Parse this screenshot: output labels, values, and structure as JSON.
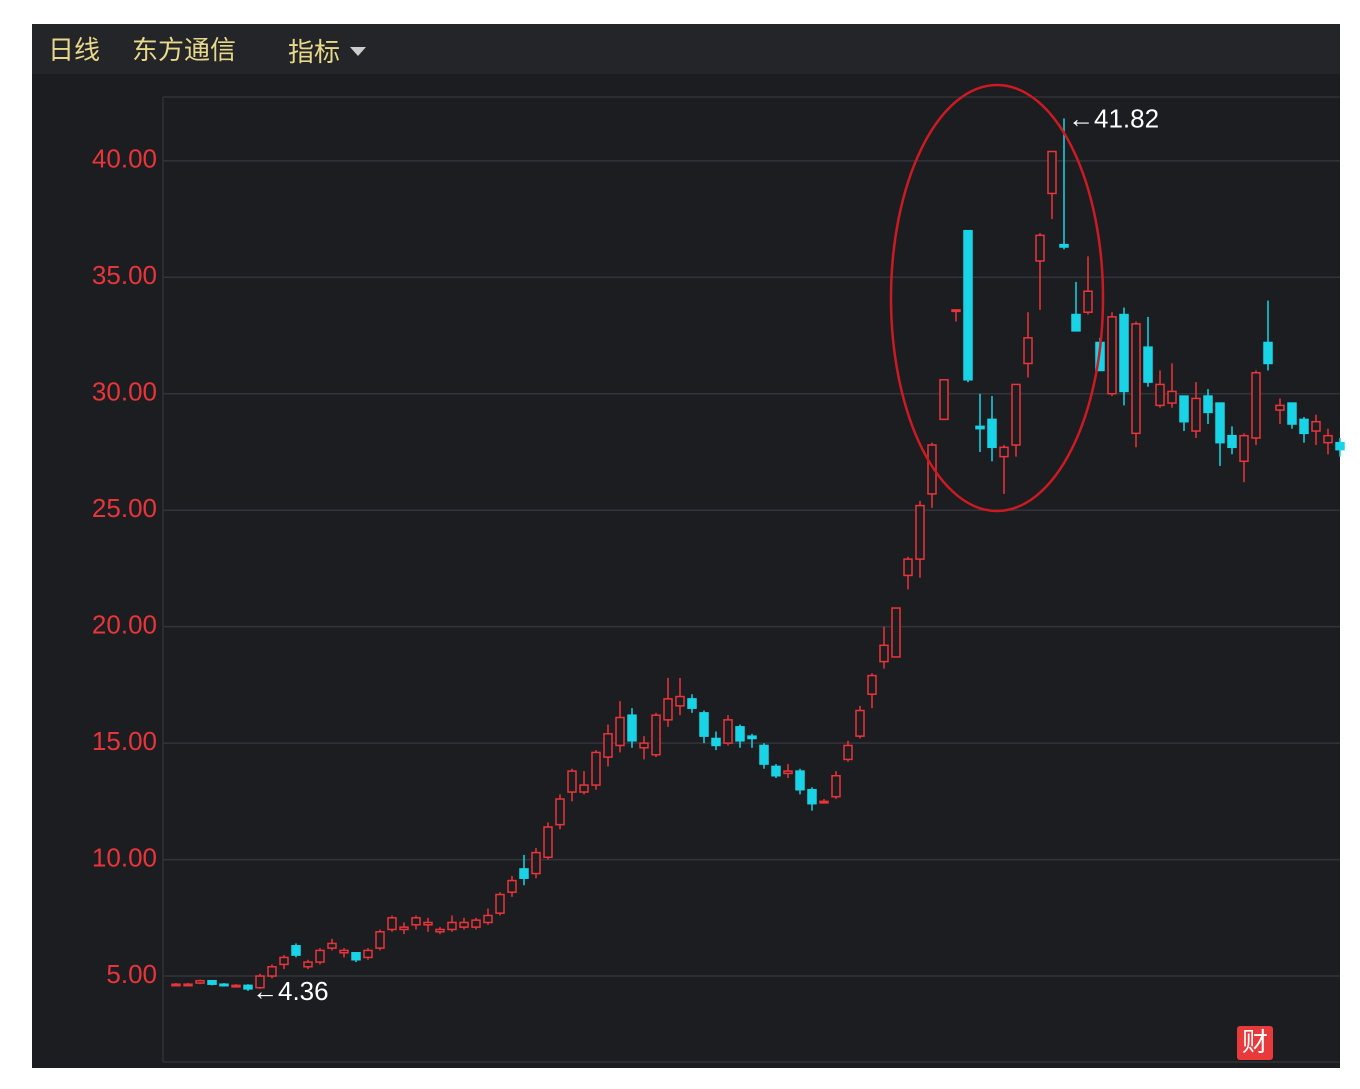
{
  "header": {
    "period": "日线",
    "stock": "东方通信",
    "indicator": "指标"
  },
  "badge": "财",
  "chart_data": {
    "type": "candlestick",
    "up_color": "#e8353a",
    "down_color": "#19d3e6",
    "tick_color": "#e8353a",
    "grid": true,
    "ylim": [
      1.31,
      42.74
    ],
    "yticks": [
      {
        "value": 5,
        "label": "5.00"
      },
      {
        "value": 10,
        "label": "10.00"
      },
      {
        "value": 15,
        "label": "15.00"
      },
      {
        "value": 20,
        "label": "20.00"
      },
      {
        "value": 25,
        "label": "25.00"
      },
      {
        "value": 30,
        "label": "30.00"
      },
      {
        "value": 35,
        "label": "35.00"
      },
      {
        "value": 40,
        "label": "40.00"
      }
    ],
    "open": [
      4.65,
      4.65,
      4.7,
      4.8,
      4.65,
      4.6,
      4.6,
      4.5,
      5.0,
      5.5,
      6.3,
      5.4,
      5.6,
      6.2,
      6.0,
      6.0,
      5.8,
      6.2,
      7.0,
      7.0,
      7.2,
      7.2,
      6.9,
      7.0,
      7.1,
      7.1,
      7.3,
      7.7,
      8.6,
      9.6,
      9.4,
      10.1,
      11.5,
      12.9,
      12.9,
      13.2,
      14.4,
      14.9,
      16.2,
      14.8,
      14.5,
      16.0,
      16.6,
      16.9,
      16.3,
      15.2,
      15.0,
      15.7,
      15.3,
      14.9,
      14.0,
      13.7,
      13.8,
      13.0,
      12.5,
      12.7,
      14.3,
      15.3,
      17.1,
      18.5,
      18.7,
      22.2,
      22.9,
      25.7,
      28.9,
      33.6,
      37.0,
      28.6,
      28.9,
      27.3,
      27.8,
      31.3,
      35.7,
      38.6,
      36.4,
      33.4,
      33.5,
      32.2,
      30.0,
      33.4,
      28.3,
      32.0,
      29.5,
      29.6,
      29.9,
      28.4,
      29.9,
      29.6,
      28.2,
      27.1,
      28.1,
      32.2,
      29.3,
      29.6,
      28.9,
      28.4,
      27.9,
      27.9
    ],
    "high": [
      4.7,
      4.7,
      4.85,
      4.8,
      4.7,
      4.65,
      4.65,
      5.1,
      5.5,
      5.9,
      6.4,
      5.7,
      6.2,
      6.6,
      6.2,
      6.0,
      6.2,
      7.0,
      7.6,
      7.3,
      7.6,
      7.5,
      7.1,
      7.6,
      7.5,
      7.5,
      7.9,
      8.6,
      9.3,
      10.2,
      10.5,
      11.6,
      12.8,
      13.9,
      13.8,
      14.7,
      15.8,
      16.8,
      16.5,
      15.3,
      16.3,
      17.8,
      17.8,
      17.1,
      16.4,
      15.5,
      16.2,
      15.8,
      15.4,
      15.0,
      14.1,
      14.1,
      13.9,
      13.1,
      12.6,
      13.8,
      15.1,
      16.6,
      18.0,
      20.0,
      20.8,
      23.0,
      25.4,
      27.9,
      30.6,
      33.6,
      37.0,
      30.0,
      29.9,
      27.8,
      30.4,
      33.5,
      36.9,
      40.4,
      41.82,
      34.8,
      35.9,
      32.4,
      33.5,
      33.7,
      33.1,
      33.3,
      31.0,
      31.3,
      29.9,
      30.5,
      30.2,
      29.6,
      28.6,
      28.3,
      31.0,
      34.0,
      29.8,
      29.6,
      29.0,
      29.1,
      28.5,
      28.1
    ],
    "low": [
      4.6,
      4.6,
      4.65,
      4.6,
      4.55,
      4.55,
      4.36,
      4.45,
      4.9,
      5.3,
      5.8,
      5.3,
      5.5,
      6.1,
      5.8,
      5.6,
      5.7,
      6.1,
      6.9,
      6.8,
      7.0,
      6.9,
      6.8,
      6.9,
      7.0,
      7.0,
      7.2,
      7.6,
      8.4,
      8.9,
      9.2,
      10.0,
      11.3,
      12.5,
      12.8,
      13.0,
      14.0,
      14.6,
      14.8,
      14.3,
      14.4,
      15.7,
      16.2,
      16.3,
      15.0,
      14.7,
      14.9,
      14.8,
      14.8,
      13.9,
      13.5,
      13.5,
      12.8,
      12.1,
      12.4,
      12.6,
      14.2,
      15.2,
      16.5,
      18.2,
      18.7,
      21.6,
      22.1,
      25.1,
      28.9,
      33.1,
      30.5,
      27.5,
      27.1,
      25.7,
      27.3,
      30.7,
      33.6,
      37.5,
      36.2,
      32.7,
      33.4,
      31.0,
      29.9,
      29.5,
      27.7,
      30.3,
      29.4,
      29.4,
      28.4,
      28.1,
      28.7,
      26.9,
      27.4,
      26.2,
      27.8,
      31.0,
      28.7,
      28.5,
      27.9,
      27.8,
      27.4,
      27.3
    ],
    "close": [
      4.65,
      4.65,
      4.8,
      4.65,
      4.6,
      4.6,
      4.45,
      5.0,
      5.4,
      5.8,
      5.9,
      5.6,
      6.1,
      6.4,
      6.1,
      5.7,
      6.1,
      6.9,
      7.5,
      7.1,
      7.5,
      7.3,
      7.0,
      7.3,
      7.3,
      7.4,
      7.6,
      8.5,
      9.1,
      9.2,
      10.3,
      11.4,
      12.6,
      13.8,
      13.2,
      14.6,
      15.4,
      16.1,
      15.1,
      15.0,
      16.2,
      16.9,
      17.0,
      16.5,
      15.3,
      14.9,
      16.0,
      15.1,
      15.2,
      14.1,
      13.6,
      13.8,
      13.0,
      12.4,
      12.5,
      13.6,
      14.9,
      16.4,
      17.9,
      19.2,
      20.8,
      22.9,
      25.2,
      27.8,
      30.6,
      33.6,
      30.6,
      28.5,
      27.7,
      27.7,
      30.4,
      32.4,
      36.8,
      40.4,
      36.3,
      32.7,
      34.4,
      31.0,
      33.3,
      30.1,
      33.0,
      30.5,
      30.4,
      30.1,
      28.8,
      29.8,
      29.2,
      27.9,
      27.7,
      28.2,
      30.9,
      31.3,
      29.5,
      28.7,
      28.3,
      28.8,
      28.2,
      27.6
    ],
    "annotations": [
      {
        "value": 41.82,
        "label": "←41.82",
        "index": 74
      },
      {
        "value": 4.36,
        "label": "←4.36",
        "index": 6
      }
    ]
  }
}
